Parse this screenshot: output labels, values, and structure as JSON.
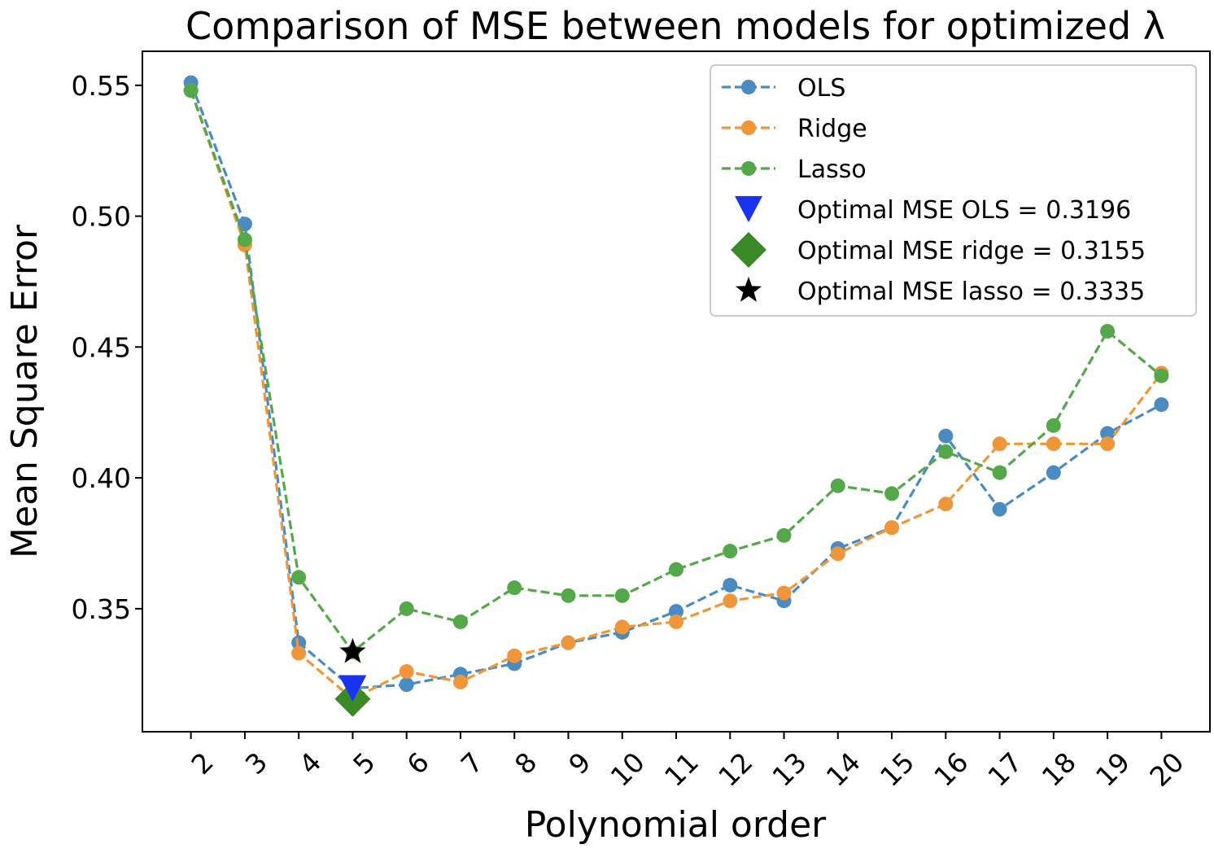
{
  "chart_data": {
    "type": "line",
    "title": "Comparison of MSE between models for optimized λ",
    "xlabel": "Polynomial order",
    "ylabel": "Mean Square Error",
    "x": [
      2,
      3,
      4,
      5,
      6,
      7,
      8,
      9,
      10,
      11,
      12,
      13,
      14,
      15,
      16,
      17,
      18,
      19,
      20
    ],
    "x_tick_labels": [
      "2",
      "3",
      "4",
      "5",
      "6",
      "7",
      "8",
      "9",
      "10",
      "11",
      "12",
      "13",
      "14",
      "15",
      "16",
      "17",
      "18",
      "19",
      "20"
    ],
    "xlim": [
      1.1,
      20.9
    ],
    "ylim": [
      0.303,
      0.563
    ],
    "y_ticks": [
      0.35,
      0.4,
      0.45,
      0.5,
      0.55
    ],
    "y_tick_labels": [
      "0.35",
      "0.40",
      "0.45",
      "0.50",
      "0.55"
    ],
    "grid": false,
    "legend_position": "upper right",
    "series": [
      {
        "name": "OLS",
        "color": "#4a8bc2",
        "style": "dashed",
        "marker": "circle",
        "values": [
          0.551,
          0.497,
          0.337,
          0.3196,
          0.321,
          0.325,
          0.329,
          0.337,
          0.341,
          0.349,
          0.359,
          0.353,
          0.373,
          0.381,
          0.416,
          0.388,
          0.402,
          0.417,
          0.428
        ]
      },
      {
        "name": "Ridge",
        "color": "#f0963a",
        "style": "dashed",
        "marker": "circle",
        "values": [
          0.548,
          0.489,
          0.333,
          0.3155,
          0.326,
          0.322,
          0.332,
          0.337,
          0.343,
          0.345,
          0.353,
          0.356,
          0.371,
          0.381,
          0.39,
          0.413,
          0.413,
          0.413,
          0.44
        ]
      },
      {
        "name": "Lasso",
        "color": "#55a84a",
        "style": "dashed",
        "marker": "circle",
        "values": [
          0.548,
          0.491,
          0.362,
          0.3335,
          0.35,
          0.345,
          0.358,
          0.355,
          0.355,
          0.365,
          0.372,
          0.378,
          0.397,
          0.394,
          0.41,
          0.402,
          0.42,
          0.456,
          0.439
        ]
      }
    ],
    "optimal_points": [
      {
        "label": "Optimal MSE OLS = 0.3196",
        "x": 5,
        "y": 0.3196,
        "marker": "triangle-down",
        "color": "#1a33ee"
      },
      {
        "label": "Optimal MSE ridge = 0.3155",
        "x": 5,
        "y": 0.3155,
        "marker": "diamond",
        "color": "#3a8a28"
      },
      {
        "label": "Optimal MSE lasso = 0.3335",
        "x": 5,
        "y": 0.3335,
        "marker": "star",
        "color": "#000000"
      }
    ]
  }
}
